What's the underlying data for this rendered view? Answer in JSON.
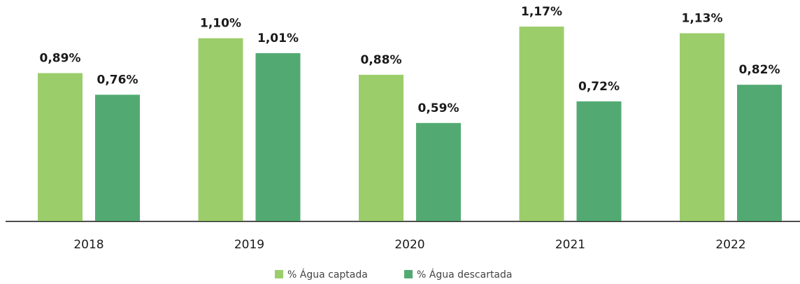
{
  "chart_data": {
    "type": "bar",
    "categories": [
      "2018",
      "2019",
      "2020",
      "2021",
      "2022"
    ],
    "series": [
      {
        "name": "% Água captada",
        "color": "#9ccd6b",
        "values": [
          0.89,
          1.1,
          0.88,
          1.17,
          1.13
        ],
        "value_labels": [
          "0,89%",
          "1,10%",
          "0,88%",
          "1,17%",
          "1,13%"
        ]
      },
      {
        "name": "% Água descartada",
        "color": "#52aa72",
        "values": [
          0.76,
          1.01,
          0.59,
          0.72,
          0.82
        ],
        "value_labels": [
          "0,76%",
          "1,01%",
          "0,59%",
          "0,72%",
          "0,82%"
        ]
      }
    ],
    "legend": "bottom"
  }
}
